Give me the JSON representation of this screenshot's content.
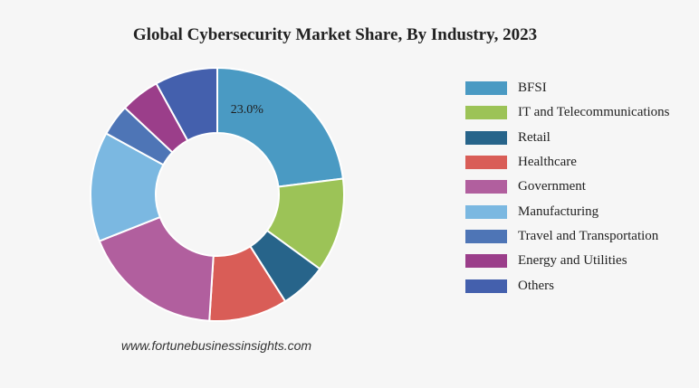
{
  "chart_data": {
    "type": "pie",
    "title": "Global Cybersecurity Market Share, By Industry, 2023",
    "donut": true,
    "legend_position": "right",
    "categories": [
      "BFSI",
      "IT and Telecommunications",
      "Retail",
      "Healthcare",
      "Government",
      "Manufacturing",
      "Travel and Transportation",
      "Energy and Utilities",
      "Others"
    ],
    "values": [
      23.0,
      12.0,
      6.0,
      10.0,
      18.0,
      14.0,
      4.0,
      5.0,
      8.0
    ],
    "colors": [
      "#4a9ac3",
      "#9cc357",
      "#27648a",
      "#d95d57",
      "#b15f9e",
      "#7bb8e1",
      "#4e75b6",
      "#9b3e8a",
      "#4460ad"
    ],
    "data_labels": [
      "23.0%",
      "",
      "",
      "",
      "",
      "",
      "",
      "",
      ""
    ]
  },
  "source": "www.fortunebusinessinsights.com"
}
